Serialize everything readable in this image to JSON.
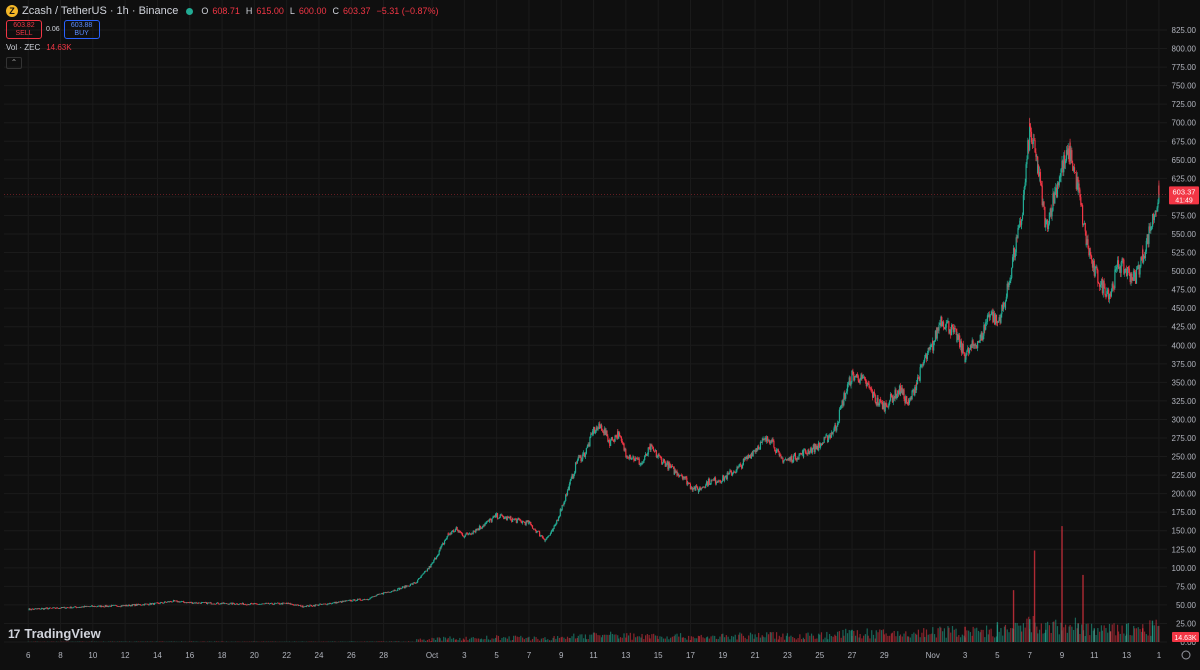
{
  "header": {
    "symbol_title": "Zcash / TetherUS · 1h · Binance",
    "ohlc": [
      {
        "key": "O",
        "value": "608.71"
      },
      {
        "key": "H",
        "value": "615.00"
      },
      {
        "key": "L",
        "value": "600.00"
      },
      {
        "key": "C",
        "value": "603.37"
      },
      {
        "key": "",
        "value": "−5.31 (−0.87%)"
      }
    ]
  },
  "trade": {
    "sell_price": "603.82",
    "sell_label": "SELL",
    "spread": "0.06",
    "buy_price": "603.88",
    "buy_label": "BUY"
  },
  "volume_legend": {
    "label": "Vol · ZEC",
    "value": "14.63K"
  },
  "collapse_glyph": "⌃",
  "branding": {
    "logo_mark": "17",
    "logo_text": "TradingView"
  },
  "price_tag": {
    "price": "603.37",
    "countdown": "41:49"
  },
  "volume_tag": "14.63K",
  "colors": {
    "background": "#0f0f0f",
    "up": "#22ab94",
    "down": "#f23645",
    "axis_text": "#b2b5be",
    "grid": "#1b1b1b"
  },
  "chart_data": {
    "type": "line",
    "title": "Zcash / TetherUS · 1h · Binance",
    "xlabel": "",
    "ylabel": "",
    "ylim": [
      0,
      825
    ],
    "y_ticks": [
      "0.00",
      "25.00",
      "50.00",
      "75.00",
      "100.00",
      "125.00",
      "150.00",
      "175.00",
      "200.00",
      "225.00",
      "250.00",
      "275.00",
      "300.00",
      "325.00",
      "350.00",
      "375.00",
      "400.00",
      "425.00",
      "450.00",
      "475.00",
      "500.00",
      "525.00",
      "550.00",
      "575.00",
      "600.00",
      "625.00",
      "650.00",
      "675.00",
      "700.00",
      "725.00",
      "750.00",
      "775.00",
      "800.00",
      "825.00"
    ],
    "x_ticks": [
      {
        "label": "6",
        "day": 6
      },
      {
        "label": "8",
        "day": 8
      },
      {
        "label": "10",
        "day": 10
      },
      {
        "label": "12",
        "day": 12
      },
      {
        "label": "14",
        "day": 14
      },
      {
        "label": "16",
        "day": 16
      },
      {
        "label": "18",
        "day": 18
      },
      {
        "label": "20",
        "day": 20
      },
      {
        "label": "22",
        "day": 22
      },
      {
        "label": "24",
        "day": 24
      },
      {
        "label": "26",
        "day": 26
      },
      {
        "label": "28",
        "day": 28
      },
      {
        "label": "Oct",
        "day": 31
      },
      {
        "label": "3",
        "day": 33
      },
      {
        "label": "5",
        "day": 35
      },
      {
        "label": "7",
        "day": 37
      },
      {
        "label": "9",
        "day": 39
      },
      {
        "label": "11",
        "day": 41
      },
      {
        "label": "13",
        "day": 43
      },
      {
        "label": "15",
        "day": 45
      },
      {
        "label": "17",
        "day": 47
      },
      {
        "label": "19",
        "day": 49
      },
      {
        "label": "21",
        "day": 51
      },
      {
        "label": "23",
        "day": 53
      },
      {
        "label": "25",
        "day": 55
      },
      {
        "label": "27",
        "day": 57
      },
      {
        "label": "29",
        "day": 59
      },
      {
        "label": "Nov",
        "day": 62
      },
      {
        "label": "3",
        "day": 64
      },
      {
        "label": "5",
        "day": 66
      },
      {
        "label": "7",
        "day": 68
      },
      {
        "label": "9",
        "day": 70
      },
      {
        "label": "11",
        "day": 72
      },
      {
        "label": "13",
        "day": 74
      },
      {
        "label": "1",
        "day": 76
      }
    ],
    "series": [
      {
        "values": [
          [
            6,
            44
          ],
          [
            8,
            46
          ],
          [
            10,
            48
          ],
          [
            12,
            49
          ],
          [
            14,
            52
          ],
          [
            15,
            55
          ],
          [
            16,
            53
          ],
          [
            18,
            52
          ],
          [
            20,
            51
          ],
          [
            22,
            52
          ],
          [
            23,
            48
          ],
          [
            24,
            50
          ],
          [
            25,
            53
          ],
          [
            26,
            56
          ],
          [
            27,
            58
          ],
          [
            28,
            66
          ],
          [
            29,
            72
          ],
          [
            30,
            80
          ],
          [
            31,
            105
          ],
          [
            31.5,
            125
          ],
          [
            32,
            145
          ],
          [
            32.5,
            152
          ],
          [
            33,
            143
          ],
          [
            34,
            155
          ],
          [
            35,
            170
          ],
          [
            36,
            165
          ],
          [
            37,
            160
          ],
          [
            38,
            138
          ],
          [
            38.5,
            150
          ],
          [
            39,
            180
          ],
          [
            39.5,
            210
          ],
          [
            40,
            245
          ],
          [
            40.5,
            255
          ],
          [
            41,
            285
          ],
          [
            41.5,
            290
          ],
          [
            42,
            270
          ],
          [
            42.5,
            280
          ],
          [
            43,
            255
          ],
          [
            44,
            240
          ],
          [
            44.5,
            262
          ],
          [
            45,
            250
          ],
          [
            46,
            230
          ],
          [
            46.5,
            225
          ],
          [
            47,
            210
          ],
          [
            47.5,
            205
          ],
          [
            48,
            215
          ],
          [
            49,
            220
          ],
          [
            50,
            235
          ],
          [
            51,
            260
          ],
          [
            51.5,
            270
          ],
          [
            52,
            275
          ],
          [
            52.5,
            248
          ],
          [
            53,
            245
          ],
          [
            54,
            255
          ],
          [
            55,
            265
          ],
          [
            55.5,
            275
          ],
          [
            56,
            290
          ],
          [
            56.5,
            330
          ],
          [
            57,
            360
          ],
          [
            57.5,
            355
          ],
          [
            58,
            345
          ],
          [
            58.5,
            325
          ],
          [
            59,
            318
          ],
          [
            59.5,
            330
          ],
          [
            60,
            340
          ],
          [
            60.5,
            320
          ],
          [
            61,
            350
          ],
          [
            61.5,
            380
          ],
          [
            62,
            400
          ],
          [
            62.5,
            435
          ],
          [
            63,
            425
          ],
          [
            63.5,
            410
          ],
          [
            64,
            385
          ],
          [
            64.5,
            400
          ],
          [
            65,
            410
          ],
          [
            65.5,
            445
          ],
          [
            66,
            430
          ],
          [
            66.5,
            460
          ],
          [
            67,
            520
          ],
          [
            67.5,
            570
          ],
          [
            68,
            690
          ],
          [
            68.5,
            640
          ],
          [
            69,
            560
          ],
          [
            69.5,
            600
          ],
          [
            70,
            640
          ],
          [
            70.5,
            660
          ],
          [
            71,
            610
          ],
          [
            71.5,
            540
          ],
          [
            72,
            500
          ],
          [
            72.5,
            480
          ],
          [
            73,
            470
          ],
          [
            73.5,
            510
          ],
          [
            74,
            500
          ],
          [
            74.5,
            490
          ],
          [
            75,
            520
          ],
          [
            75.5,
            560
          ],
          [
            76,
            603.37
          ]
        ]
      }
    ],
    "last_price": 603.37,
    "volume_ylim": [
      0,
      400
    ],
    "volume_highlights": [
      [
        57,
        40
      ],
      [
        64,
        50
      ],
      [
        66,
        65
      ],
      [
        67,
        170
      ],
      [
        68,
        75
      ],
      [
        68.3,
        300
      ],
      [
        69,
        40
      ],
      [
        70,
        380
      ],
      [
        71,
        60
      ],
      [
        71.3,
        220
      ],
      [
        72,
        45
      ],
      [
        73,
        35
      ],
      [
        74,
        60
      ],
      [
        75,
        45
      ],
      [
        75.6,
        70
      ]
    ]
  }
}
